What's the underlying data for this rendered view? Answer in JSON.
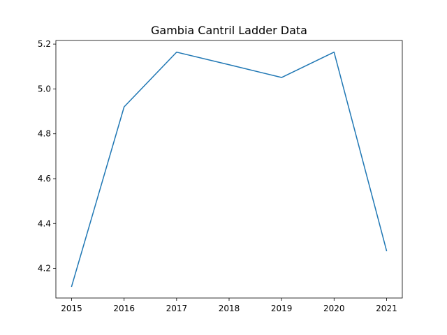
{
  "chart_data": {
    "type": "line",
    "title": "Gambia Cantril Ladder Data",
    "xlabel": "",
    "ylabel": "",
    "x": [
      2015,
      2016,
      2017,
      2018,
      2019,
      2020,
      2021
    ],
    "series": [
      {
        "values": [
          4.12,
          4.92,
          5.164,
          5.108,
          5.051,
          5.164,
          4.279
        ],
        "color": "#1f77b4"
      }
    ],
    "xlim": [
      2014.7,
      2021.3
    ],
    "ylim": [
      4.068,
      5.216
    ],
    "xticks": [
      "2015",
      "2016",
      "2017",
      "2018",
      "2019",
      "2020",
      "2021"
    ],
    "yticks": [
      "4.2",
      "4.4",
      "4.6",
      "4.8",
      "5.0",
      "5.2"
    ],
    "grid": false,
    "legend": "none"
  }
}
